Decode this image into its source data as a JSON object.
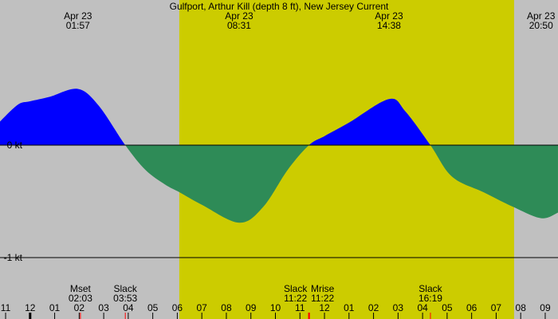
{
  "chart_data": {
    "type": "area",
    "title": "Gulfport, Arthur Kill (depth 8 ft), New Jersey Current",
    "ylabel_unit": "kt",
    "y_ticks": [
      {
        "value": 0,
        "label": "0 kt"
      },
      {
        "value": -1,
        "label": "-1 kt"
      }
    ],
    "ylim": [
      -1.3,
      1.3
    ],
    "xlim_hours": [
      -1.23,
      21.52
    ],
    "colors": {
      "background": "#c0c0c0",
      "daylight": "#cccc00",
      "flood": "#0000ff",
      "ebb": "#2e8b57",
      "event_tick": "#ff0000"
    },
    "daylight_hours": [
      6.08,
      19.73
    ],
    "series": [
      {
        "points": [
          [
            -1.23,
            0.21
          ],
          [
            -0.5,
            0.36
          ],
          [
            0.0,
            0.39
          ],
          [
            0.8,
            0.43
          ],
          [
            1.95,
            0.5
          ],
          [
            2.8,
            0.35
          ],
          [
            3.88,
            0
          ],
          [
            4.7,
            -0.22
          ],
          [
            5.5,
            -0.35
          ],
          [
            6.1,
            -0.42
          ],
          [
            7.0,
            -0.53
          ],
          [
            8.52,
            -0.69
          ],
          [
            9.5,
            -0.55
          ],
          [
            10.5,
            -0.22
          ],
          [
            11.37,
            0
          ],
          [
            12.0,
            0.08
          ],
          [
            13.0,
            0.2
          ],
          [
            14.63,
            0.41
          ],
          [
            15.3,
            0.3
          ],
          [
            16.32,
            0
          ],
          [
            17.2,
            -0.28
          ],
          [
            18.5,
            -0.42
          ],
          [
            19.7,
            -0.55
          ],
          [
            20.83,
            -0.65
          ],
          [
            21.52,
            -0.6
          ]
        ]
      }
    ],
    "extrema_labels": [
      {
        "hour": 1.95,
        "date": "Apr 23",
        "time": "01:57"
      },
      {
        "hour": 8.52,
        "date": "Apr 23",
        "time": "08:31"
      },
      {
        "hour": 14.63,
        "date": "Apr 23",
        "time": "14:38"
      },
      {
        "hour": 20.83,
        "date": "Apr 23",
        "time": "20:50"
      }
    ],
    "events": [
      {
        "hour": 2.05,
        "name": "Mset",
        "time": "02:03"
      },
      {
        "hour": 3.88,
        "name": "Slack",
        "time": "03:53"
      },
      {
        "hour": 11.37,
        "name": "Slack",
        "time": "11:22"
      },
      {
        "hour": 11.37,
        "name": "Mrise",
        "time": "11:22"
      },
      {
        "hour": 16.32,
        "name": "Slack",
        "time": "16:19"
      }
    ],
    "hour_ticks": [
      {
        "hour": -1,
        "label": "11"
      },
      {
        "hour": 0,
        "label": "12"
      },
      {
        "hour": 1,
        "label": "01"
      },
      {
        "hour": 2,
        "label": "02"
      },
      {
        "hour": 3,
        "label": "03"
      },
      {
        "hour": 4,
        "label": "04"
      },
      {
        "hour": 5,
        "label": "05"
      },
      {
        "hour": 6,
        "label": "06"
      },
      {
        "hour": 7,
        "label": "07"
      },
      {
        "hour": 8,
        "label": "08"
      },
      {
        "hour": 9,
        "label": "09"
      },
      {
        "hour": 10,
        "label": "10"
      },
      {
        "hour": 11,
        "label": "11"
      },
      {
        "hour": 12,
        "label": "12"
      },
      {
        "hour": 13,
        "label": "01"
      },
      {
        "hour": 14,
        "label": "02"
      },
      {
        "hour": 15,
        "label": "03"
      },
      {
        "hour": 16,
        "label": "04"
      },
      {
        "hour": 17,
        "label": "05"
      },
      {
        "hour": 18,
        "label": "06"
      },
      {
        "hour": 19,
        "label": "07"
      },
      {
        "hour": 20,
        "label": "08"
      },
      {
        "hour": 21,
        "label": "09"
      }
    ]
  }
}
